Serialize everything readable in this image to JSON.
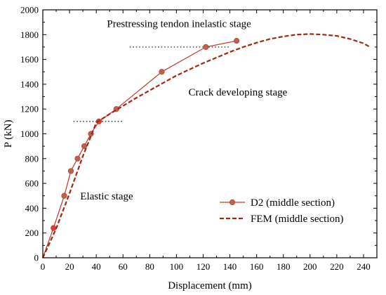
{
  "chart_data": {
    "type": "line",
    "xlabel": "Displacement (mm)",
    "ylabel": "P (kN)",
    "xlim": [
      0,
      250
    ],
    "ylim": [
      0,
      2000
    ],
    "x_ticks": [
      0,
      20,
      40,
      60,
      80,
      100,
      120,
      140,
      160,
      180,
      200,
      220,
      240
    ],
    "y_ticks": [
      0,
      200,
      400,
      600,
      800,
      1000,
      1200,
      1400,
      1600,
      1800,
      2000
    ],
    "grid": false,
    "legend_position": "bottom-right",
    "series": [
      {
        "name": "D2 (middle section)",
        "style": "solid-line-with-markers",
        "color": "#c0392b",
        "marker_color": "#b5654d",
        "x": [
          0,
          8,
          16,
          21,
          26,
          31,
          36,
          42,
          55,
          89,
          122,
          145
        ],
        "y": [
          0,
          240,
          500,
          700,
          800,
          900,
          1000,
          1100,
          1200,
          1500,
          1700,
          1750
        ]
      },
      {
        "name": "FEM (middle section)",
        "style": "dashed-line",
        "color": "#a0280e",
        "x": [
          0,
          10,
          20,
          30,
          40,
          50,
          60,
          70,
          80,
          90,
          100,
          110,
          120,
          130,
          140,
          150,
          160,
          170,
          180,
          190,
          200,
          210,
          220,
          230,
          240,
          244
        ],
        "y": [
          0,
          235,
          520,
          820,
          1090,
          1160,
          1225,
          1290,
          1350,
          1410,
          1470,
          1520,
          1570,
          1615,
          1660,
          1700,
          1735,
          1765,
          1785,
          1800,
          1805,
          1800,
          1790,
          1765,
          1730,
          1705
        ]
      }
    ],
    "annotations": [
      {
        "text": "Prestressing tendon inelastic stage",
        "x": 48,
        "y": 1860
      },
      {
        "text": "Crack developing stage",
        "x": 109,
        "y": 1310
      },
      {
        "text": "Elastic stage",
        "x": 28,
        "y": 470
      }
    ],
    "reference_lines": [
      {
        "x": [
          65,
          140
        ],
        "y": 1700
      },
      {
        "x": [
          23,
          60
        ],
        "y": 1100
      }
    ]
  }
}
